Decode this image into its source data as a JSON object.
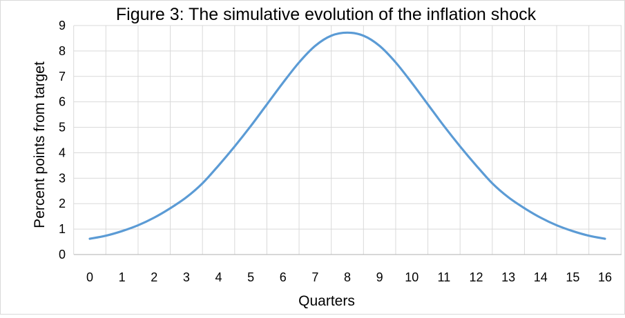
{
  "chart_data": {
    "type": "line",
    "title": "Figure 3: The simulative evolution of the inflation shock",
    "xlabel": "Quarters",
    "ylabel": "Percent points from target",
    "xlim": [
      0,
      16
    ],
    "ylim": [
      0,
      9
    ],
    "x_ticks": [
      "0",
      "1",
      "2",
      "3",
      "4",
      "5",
      "6",
      "7",
      "8",
      "9",
      "10",
      "11",
      "12",
      "13",
      "14",
      "15",
      "16"
    ],
    "y_ticks": [
      "0",
      "1",
      "2",
      "3",
      "4",
      "5",
      "6",
      "7",
      "8",
      "9"
    ],
    "grid": true,
    "legend": "none",
    "series_color": "#5B9BD5",
    "series": [
      {
        "x": [
          0,
          0.5,
          1,
          1.5,
          2,
          2.5,
          3,
          3.5,
          4,
          4.5,
          5,
          5.5,
          6,
          6.5,
          7,
          7.5,
          8,
          8.5,
          9,
          9.5,
          10,
          10.5,
          11,
          11.5,
          12,
          12.5,
          13,
          13.5,
          14,
          14.5,
          15,
          15.5,
          16
        ],
        "values": [
          0.62,
          0.74,
          0.92,
          1.15,
          1.45,
          1.82,
          2.25,
          2.8,
          3.5,
          4.25,
          5.05,
          5.9,
          6.75,
          7.55,
          8.2,
          8.6,
          8.72,
          8.6,
          8.2,
          7.55,
          6.75,
          5.9,
          5.05,
          4.25,
          3.5,
          2.8,
          2.25,
          1.82,
          1.45,
          1.15,
          0.92,
          0.74,
          0.62
        ]
      }
    ]
  }
}
